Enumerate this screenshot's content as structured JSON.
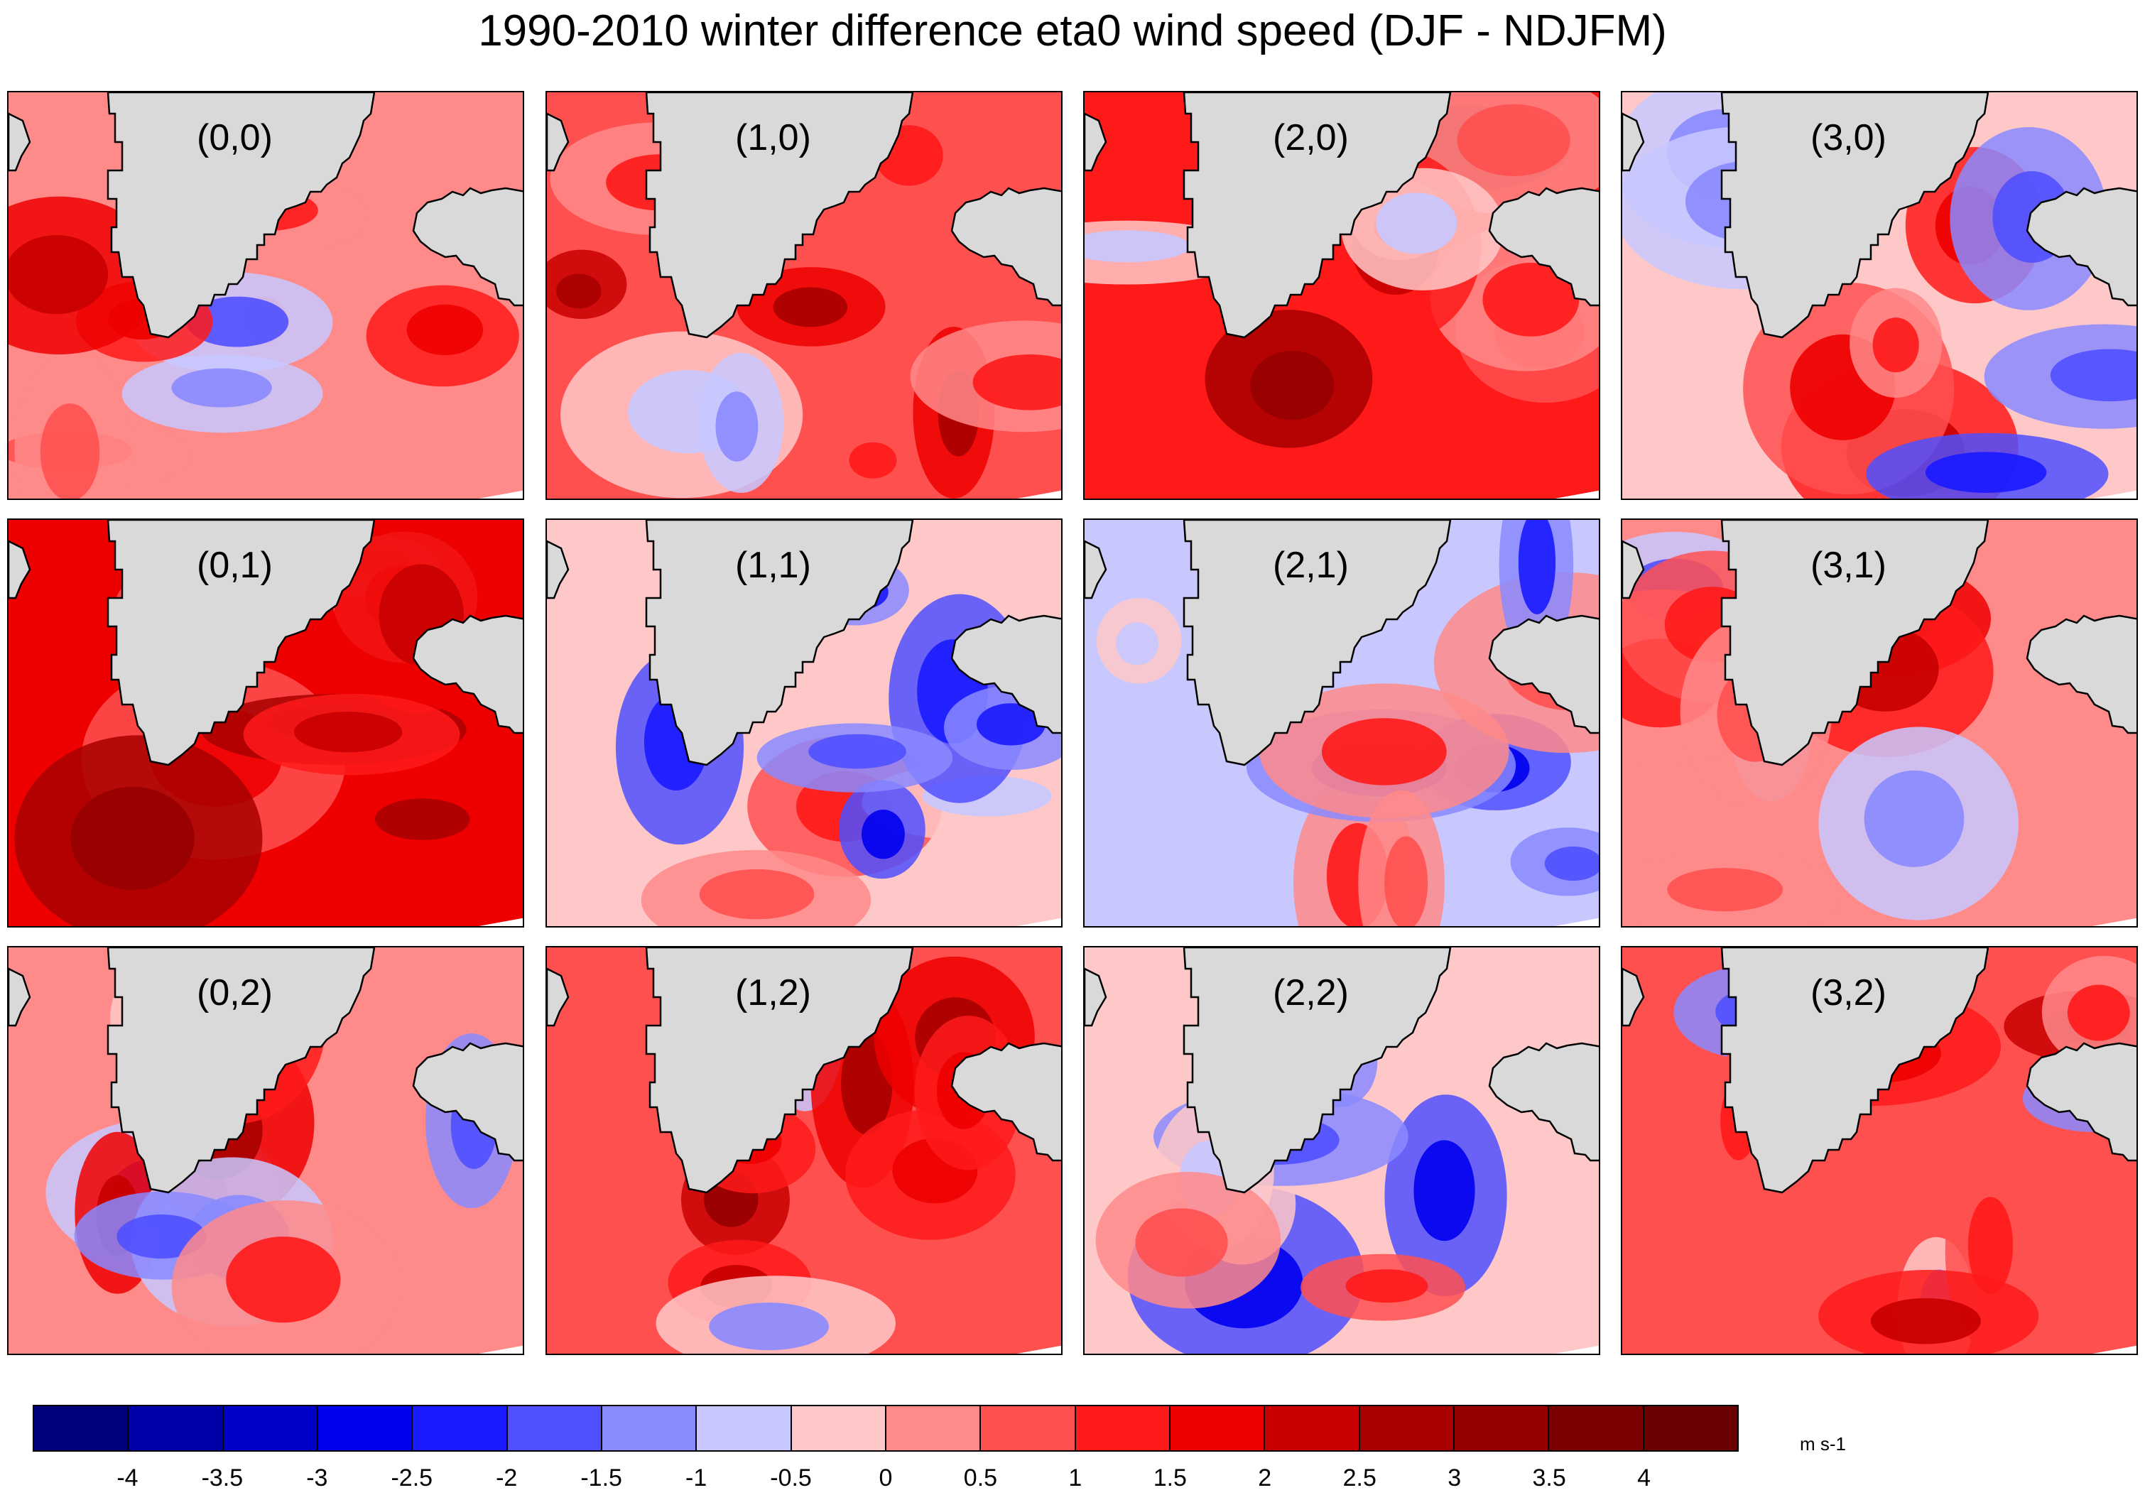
{
  "title": "1990-2010 winter difference eta0 wind speed (DJF - NDJFM)",
  "panels": [
    {
      "label": "(0,0)",
      "row": 0,
      "col": 0,
      "mean_diff": 0.2
    },
    {
      "label": "(1,0)",
      "row": 0,
      "col": 1,
      "mean_diff": 0.9
    },
    {
      "label": "(2,0)",
      "row": 0,
      "col": 2,
      "mean_diff": 1.1
    },
    {
      "label": "(3,0)",
      "row": 0,
      "col": 3,
      "mean_diff": -0.1
    },
    {
      "label": "(0,1)",
      "row": 1,
      "col": 0,
      "mean_diff": 1.6
    },
    {
      "label": "(1,1)",
      "row": 1,
      "col": 1,
      "mean_diff": -0.5
    },
    {
      "label": "(2,1)",
      "row": 1,
      "col": 2,
      "mean_diff": -1.0
    },
    {
      "label": "(3,1)",
      "row": 1,
      "col": 3,
      "mean_diff": 0.3
    },
    {
      "label": "(0,2)",
      "row": 2,
      "col": 0,
      "mean_diff": 0.4
    },
    {
      "label": "(1,2)",
      "row": 2,
      "col": 1,
      "mean_diff": 0.8
    },
    {
      "label": "(2,2)",
      "row": 2,
      "col": 2,
      "mean_diff": -0.4
    },
    {
      "label": "(3,2)",
      "row": 2,
      "col": 3,
      "mean_diff": 0.5
    }
  ],
  "colorbar": {
    "colors": [
      "#00007a",
      "#0000a8",
      "#0000c8",
      "#0000ee",
      "#1a1aff",
      "#5050ff",
      "#8a8aff",
      "#c8c8ff",
      "#ffc8c8",
      "#ff8a8a",
      "#ff5050",
      "#ff1a1a",
      "#ee0000",
      "#c80000",
      "#a80000",
      "#960000",
      "#7a0000",
      "#6a0000"
    ],
    "ticks": [
      "-4",
      "-3.5",
      "-3",
      "-2.5",
      "-2",
      "-1.5",
      "-1",
      "-0.5",
      "0",
      "0.5",
      "1",
      "1.5",
      "2",
      "2.5",
      "3",
      "3.5",
      "4"
    ],
    "units": "m s-1"
  },
  "colors": {
    "land": "#d9d9d9",
    "coast": "#000000"
  }
}
